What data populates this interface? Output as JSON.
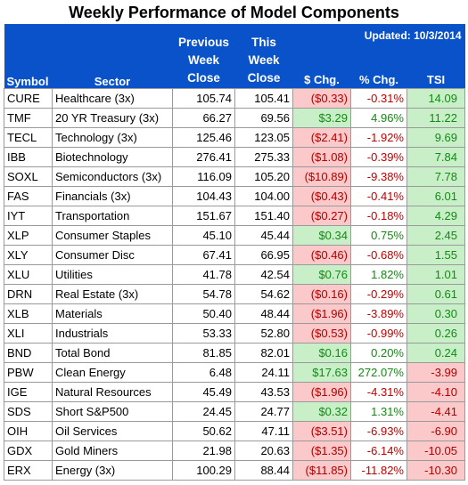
{
  "title": "Weekly Performance of Model Components",
  "updated": "Updated:  10/3/2014",
  "headers": {
    "symbol": "Symbol",
    "sector": "Sector",
    "prev_1": "Previous",
    "prev_2": "Week",
    "prev_3": "Close",
    "this_1": "This",
    "this_2": "Week",
    "this_3": "Close",
    "chg": "$ Chg.",
    "pct": "% Chg.",
    "tsi": "TSI"
  },
  "colors": {
    "header_bg": "#0a52c9",
    "negative_bg": "#fbc9c9",
    "positive_bg": "#c8efc8",
    "negative_text": "#c00000",
    "positive_text": "#138a13"
  },
  "rows": [
    {
      "symbol": "CURE",
      "sector": "Healthcare (3x)",
      "prev": "105.74",
      "this": "105.41",
      "chg": "($0.33)",
      "pct": "-0.31%",
      "tsi": "14.09",
      "chg_sign": "neg",
      "tsi_sign": "pos"
    },
    {
      "symbol": "TMF",
      "sector": "20 YR Treasury (3x)",
      "prev": "66.27",
      "this": "69.56",
      "chg": "$3.29",
      "pct": "4.96%",
      "tsi": "11.22",
      "chg_sign": "pos",
      "tsi_sign": "pos"
    },
    {
      "symbol": "TECL",
      "sector": "Technology (3x)",
      "prev": "125.46",
      "this": "123.05",
      "chg": "($2.41)",
      "pct": "-1.92%",
      "tsi": "9.69",
      "chg_sign": "neg",
      "tsi_sign": "pos"
    },
    {
      "symbol": "IBB",
      "sector": "Biotechnology",
      "prev": "276.41",
      "this": "275.33",
      "chg": "($1.08)",
      "pct": "-0.39%",
      "tsi": "7.84",
      "chg_sign": "neg",
      "tsi_sign": "pos"
    },
    {
      "symbol": "SOXL",
      "sector": "Semiconductors (3x)",
      "prev": "116.09",
      "this": "105.20",
      "chg": "($10.89)",
      "pct": "-9.38%",
      "tsi": "7.78",
      "chg_sign": "neg",
      "tsi_sign": "pos"
    },
    {
      "symbol": "FAS",
      "sector": "Financials (3x)",
      "prev": "104.43",
      "this": "104.00",
      "chg": "($0.43)",
      "pct": "-0.41%",
      "tsi": "6.01",
      "chg_sign": "neg",
      "tsi_sign": "pos"
    },
    {
      "symbol": "IYT",
      "sector": "Transportation",
      "prev": "151.67",
      "this": "151.40",
      "chg": "($0.27)",
      "pct": "-0.18%",
      "tsi": "4.29",
      "chg_sign": "neg",
      "tsi_sign": "pos"
    },
    {
      "symbol": "XLP",
      "sector": "Consumer Staples",
      "prev": "45.10",
      "this": "45.44",
      "chg": "$0.34",
      "pct": "0.75%",
      "tsi": "2.45",
      "chg_sign": "pos",
      "tsi_sign": "pos"
    },
    {
      "symbol": "XLY",
      "sector": "Consumer Disc",
      "prev": "67.41",
      "this": "66.95",
      "chg": "($0.46)",
      "pct": "-0.68%",
      "tsi": "1.55",
      "chg_sign": "neg",
      "tsi_sign": "pos"
    },
    {
      "symbol": "XLU",
      "sector": "Utilities",
      "prev": "41.78",
      "this": "42.54",
      "chg": "$0.76",
      "pct": "1.82%",
      "tsi": "1.01",
      "chg_sign": "pos",
      "tsi_sign": "pos"
    },
    {
      "symbol": "DRN",
      "sector": "Real Estate (3x)",
      "prev": "54.78",
      "this": "54.62",
      "chg": "($0.16)",
      "pct": "-0.29%",
      "tsi": "0.61",
      "chg_sign": "neg",
      "tsi_sign": "pos"
    },
    {
      "symbol": "XLB",
      "sector": "Materials",
      "prev": "50.40",
      "this": "48.44",
      "chg": "($1.96)",
      "pct": "-3.89%",
      "tsi": "0.30",
      "chg_sign": "neg",
      "tsi_sign": "pos"
    },
    {
      "symbol": "XLI",
      "sector": "Industrials",
      "prev": "53.33",
      "this": "52.80",
      "chg": "($0.53)",
      "pct": "-0.99%",
      "tsi": "0.26",
      "chg_sign": "neg",
      "tsi_sign": "pos"
    },
    {
      "symbol": "BND",
      "sector": "Total Bond",
      "prev": "81.85",
      "this": "82.01",
      "chg": "$0.16",
      "pct": "0.20%",
      "tsi": "0.24",
      "chg_sign": "pos",
      "tsi_sign": "pos"
    },
    {
      "symbol": "PBW",
      "sector": "Clean Energy",
      "prev": "6.48",
      "this": "24.11",
      "chg": "$17.63",
      "pct": "272.07%",
      "tsi": "-3.99",
      "chg_sign": "pos",
      "tsi_sign": "neg"
    },
    {
      "symbol": "IGE",
      "sector": "Natural Resources",
      "prev": "45.49",
      "this": "43.53",
      "chg": "($1.96)",
      "pct": "-4.31%",
      "tsi": "-4.10",
      "chg_sign": "neg",
      "tsi_sign": "neg"
    },
    {
      "symbol": "SDS",
      "sector": "Short S&P500",
      "prev": "24.45",
      "this": "24.77",
      "chg": "$0.32",
      "pct": "1.31%",
      "tsi": "-4.41",
      "chg_sign": "pos",
      "tsi_sign": "neg"
    },
    {
      "symbol": "OIH",
      "sector": "Oil Services",
      "prev": "50.62",
      "this": "47.11",
      "chg": "($3.51)",
      "pct": "-6.93%",
      "tsi": "-6.90",
      "chg_sign": "neg",
      "tsi_sign": "neg"
    },
    {
      "symbol": "GDX",
      "sector": "Gold Miners",
      "prev": "21.98",
      "this": "20.63",
      "chg": "($1.35)",
      "pct": "-6.14%",
      "tsi": "-10.05",
      "chg_sign": "neg",
      "tsi_sign": "neg"
    },
    {
      "symbol": "ERX",
      "sector": "Energy (3x)",
      "prev": "100.29",
      "this": "88.44",
      "chg": "($11.85)",
      "pct": "-11.82%",
      "tsi": "-10.30",
      "chg_sign": "neg",
      "tsi_sign": "neg"
    }
  ]
}
